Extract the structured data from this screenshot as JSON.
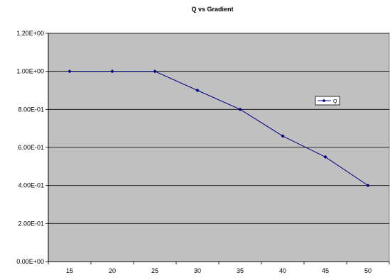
{
  "chart_data": {
    "type": "line",
    "title": "Q  vs  Gradient",
    "xlabel": "",
    "ylabel": "",
    "categories": [
      "15",
      "20",
      "25",
      "30",
      "35",
      "40",
      "45",
      "50"
    ],
    "series": [
      {
        "name": "Q",
        "values": [
          1.0,
          1.0,
          1.0,
          0.9,
          0.8,
          0.66,
          0.55,
          0.4
        ],
        "color": "#000080"
      }
    ],
    "ylim": [
      0,
      1.2
    ],
    "yticks": [
      {
        "value": 0,
        "label": "0.00E+00"
      },
      {
        "value": 0.2,
        "label": "2.00E-01"
      },
      {
        "value": 0.4,
        "label": "4.00E-01"
      },
      {
        "value": 0.6,
        "label": "6.00E-01"
      },
      {
        "value": 0.8,
        "label": "8.00E-01"
      },
      {
        "value": 1.0,
        "label": "1.00E+00"
      },
      {
        "value": 1.2,
        "label": "1.20E+00"
      }
    ],
    "grid": "horizontal",
    "legend_position": "right",
    "plot_background": "#c0c0c0"
  }
}
